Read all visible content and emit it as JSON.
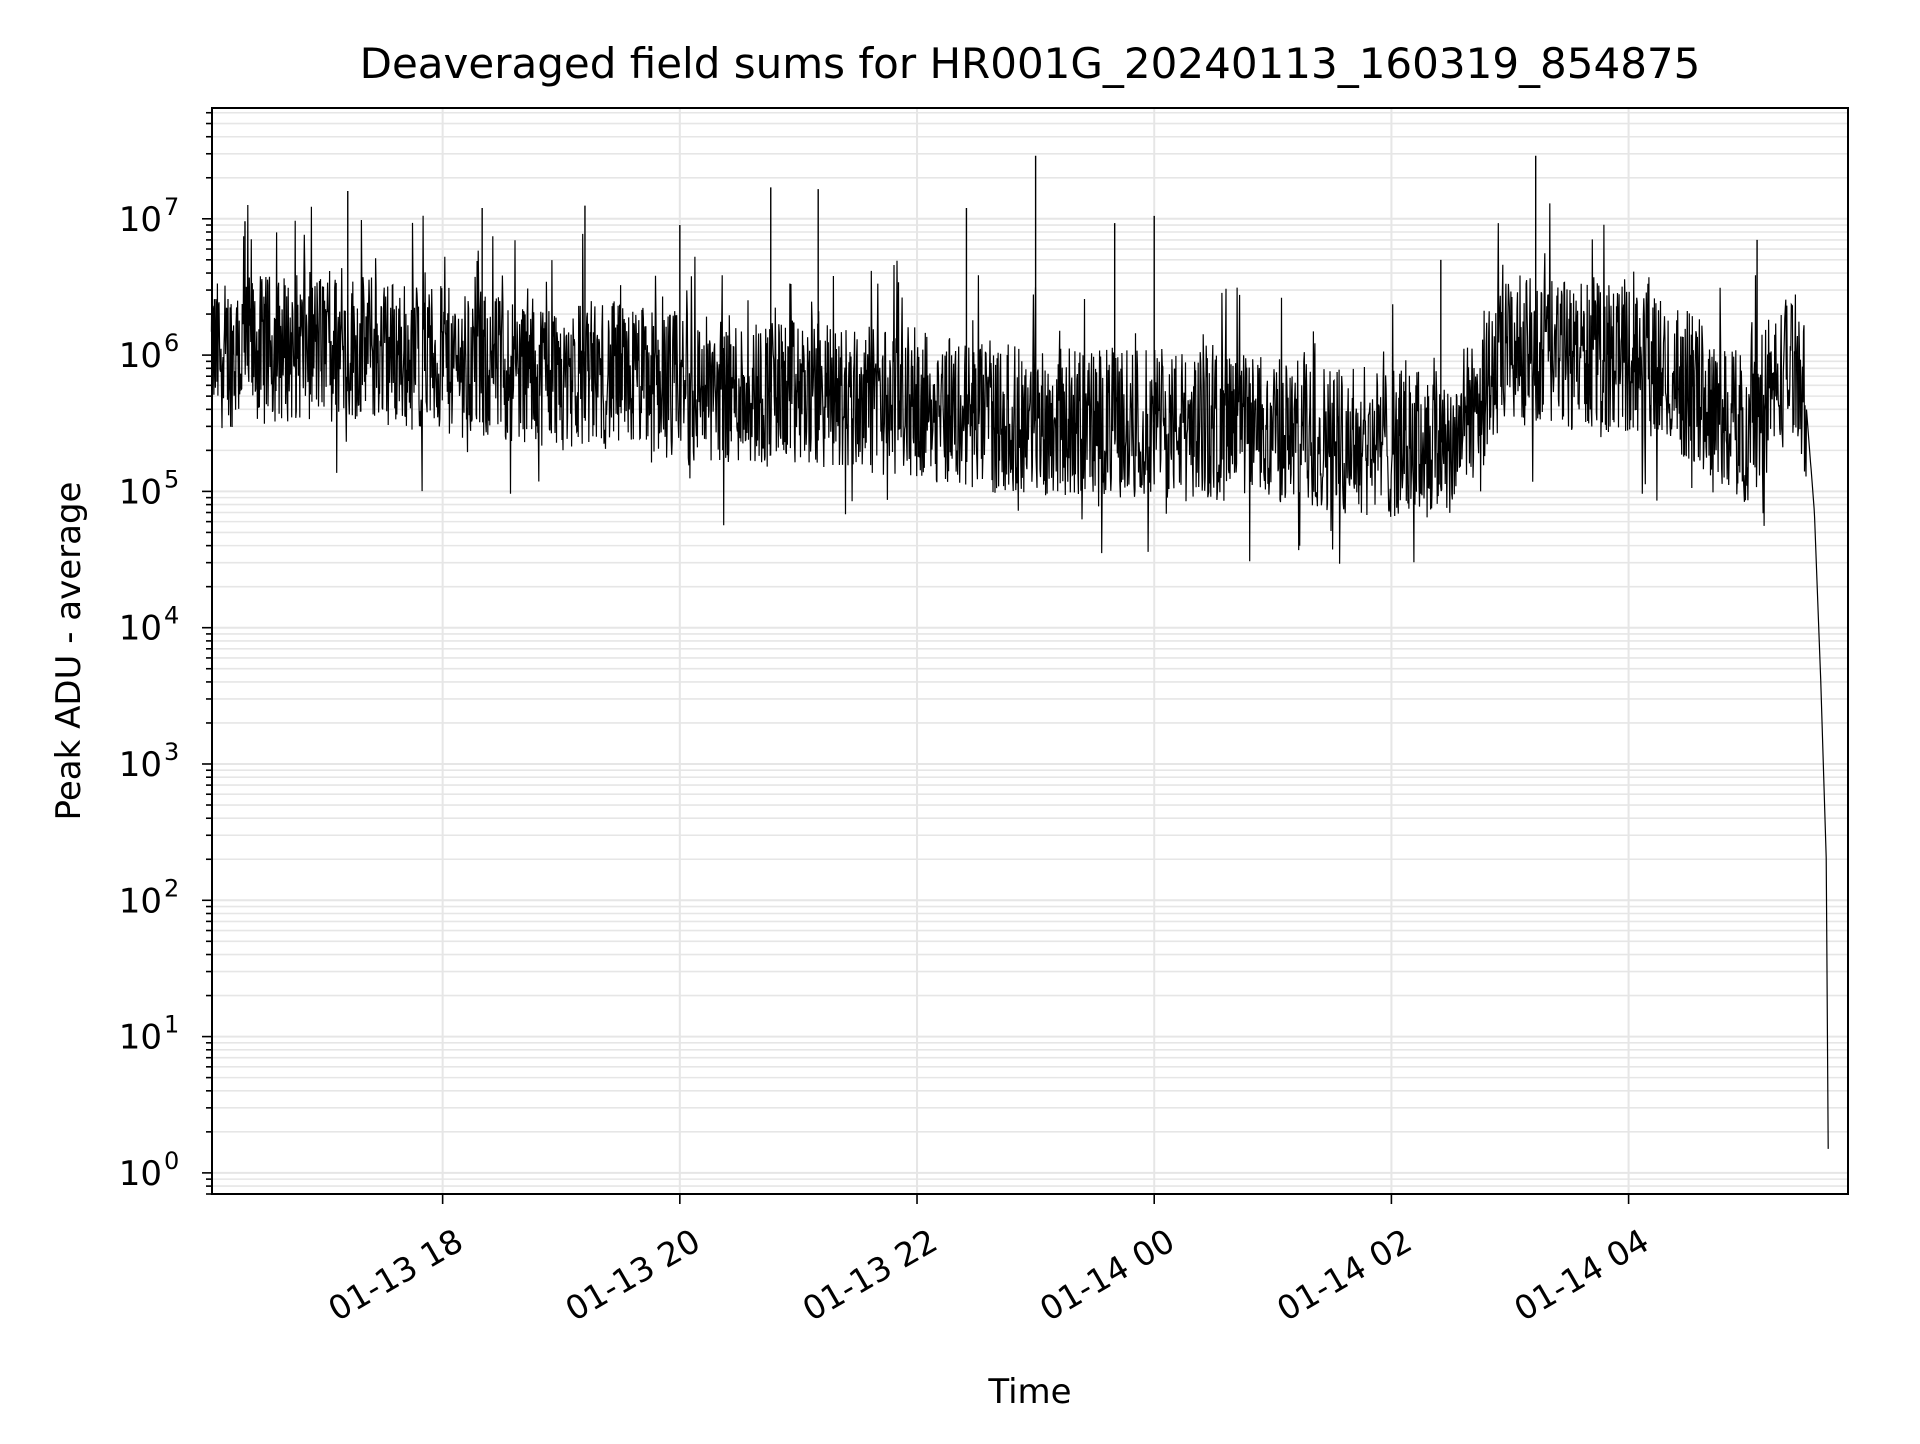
{
  "chart_data": {
    "type": "line",
    "title": "Deaveraged field sums for HR001G_20240113_160319_854875",
    "xlabel": "Time",
    "ylabel": "Peak ADU - average",
    "x_range": [
      "2024-01-13 16:03:19",
      "2024-01-14 05:51:00"
    ],
    "x_ticks": [
      "01-13 18",
      "01-13 20",
      "01-13 22",
      "01-14 00",
      "01-14 02",
      "01-14 04"
    ],
    "x_tick_values": [
      "2024-01-13 18:00",
      "2024-01-13 20:00",
      "2024-01-13 22:00",
      "2024-01-14 00:00",
      "2024-01-14 02:00",
      "2024-01-14 04:00"
    ],
    "y_scale": "log",
    "ylim": [
      0.7,
      65000000
    ],
    "y_tick_exponents": [
      0,
      1,
      2,
      3,
      4,
      5,
      6,
      7
    ],
    "y_tick_labels": [
      "10",
      "10",
      "10",
      "10",
      "10",
      "10",
      "10",
      "10"
    ],
    "grid": true,
    "line_color": "#000000",
    "grid_color": "#e6e6e6",
    "series": [
      {
        "x": [
          "2024-01-13 16:03",
          "2024-01-13 16:30",
          "2024-01-13 17:00",
          "2024-01-13 17:30",
          "2024-01-13 18:00",
          "2024-01-13 18:30",
          "2024-01-13 19:00",
          "2024-01-13 19:30",
          "2024-01-13 20:00",
          "2024-01-13 20:30",
          "2024-01-13 21:00",
          "2024-01-13 21:30",
          "2024-01-13 22:00",
          "2024-01-13 22:30",
          "2024-01-13 23:00",
          "2024-01-13 23:30",
          "2024-01-14 00:00",
          "2024-01-14 00:30",
          "2024-01-14 01:00",
          "2024-01-14 01:30",
          "2024-01-14 02:00",
          "2024-01-14 02:30",
          "2024-01-14 03:00",
          "2024-01-14 03:30",
          "2024-01-14 04:00",
          "2024-01-14 04:30",
          "2024-01-14 05:00",
          "2024-01-14 05:20",
          "2024-01-14 05:25",
          "2024-01-14 05:30",
          "2024-01-14 05:34",
          "2024-01-14 05:37",
          "2024-01-14 05:40",
          "2024-01-14 05:41"
        ],
        "y": [
          1000000,
          1100000,
          1200000,
          1100000,
          900000,
          800000,
          750000,
          700000,
          600000,
          550000,
          520000,
          480000,
          450000,
          350000,
          330000,
          320000,
          320000,
          300000,
          280000,
          250000,
          220000,
          230000,
          1100000,
          1000000,
          950000,
          600000,
          280000,
          800000,
          1000000,
          400000,
          70000,
          5000,
          200,
          1.5
        ],
        "spikes": [
          {
            "x": "2024-01-13 16:20",
            "y": 9600000
          },
          {
            "x": "2024-01-13 17:12",
            "y": 16000000
          },
          {
            "x": "2024-01-13 18:20",
            "y": 12000000
          },
          {
            "x": "2024-01-13 19:12",
            "y": 12500000
          },
          {
            "x": "2024-01-13 20:00",
            "y": 9000000
          },
          {
            "x": "2024-01-13 20:46",
            "y": 17000000
          },
          {
            "x": "2024-01-13 21:10",
            "y": 16500000
          },
          {
            "x": "2024-01-13 22:25",
            "y": 12000000
          },
          {
            "x": "2024-01-13 23:00",
            "y": 29000000
          },
          {
            "x": "2024-01-13 23:40",
            "y": 9300000
          },
          {
            "x": "2024-01-14 00:00",
            "y": 10500000
          },
          {
            "x": "2024-01-14 02:25",
            "y": 5000000
          },
          {
            "x": "2024-01-14 03:13",
            "y": 29000000
          },
          {
            "x": "2024-01-14 05:05",
            "y": 7000000
          }
        ]
      }
    ]
  }
}
